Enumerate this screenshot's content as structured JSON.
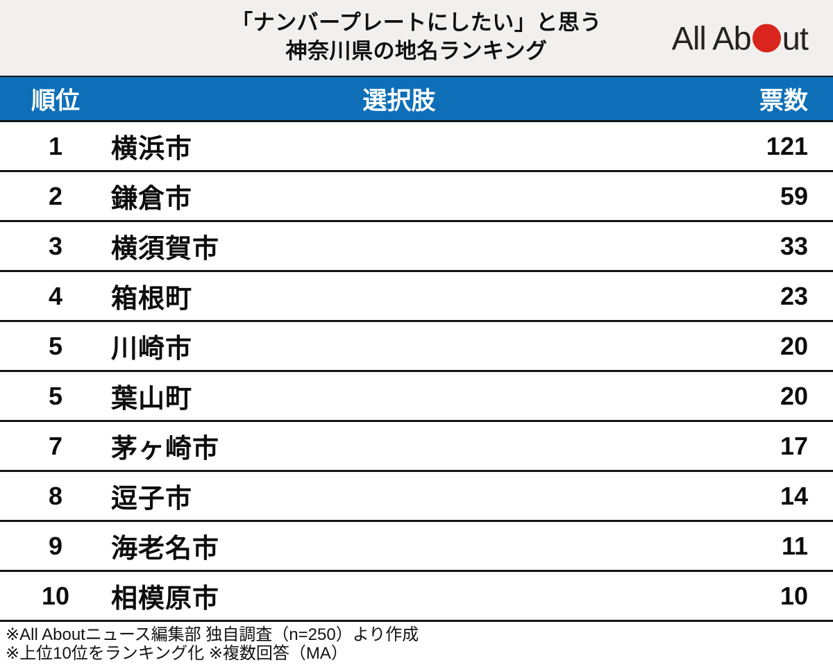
{
  "header": {
    "title_line1": "「ナンバープレートにしたい」と思う",
    "title_line2": "神奈川県の地名ランキング",
    "logo": {
      "text_left": "All Ab",
      "text_right": "ut",
      "circle_color": "#d9251d"
    }
  },
  "table": {
    "columns": {
      "rank": "順位",
      "choice": "選択肢",
      "votes": "票数"
    },
    "rows": [
      {
        "rank": "1",
        "choice": "横浜市",
        "votes": "121"
      },
      {
        "rank": "2",
        "choice": "鎌倉市",
        "votes": "59"
      },
      {
        "rank": "3",
        "choice": "横須賀市",
        "votes": "33"
      },
      {
        "rank": "4",
        "choice": "箱根町",
        "votes": "23"
      },
      {
        "rank": "5",
        "choice": "川崎市",
        "votes": "20"
      },
      {
        "rank": "5",
        "choice": "葉山町",
        "votes": "20"
      },
      {
        "rank": "7",
        "choice": "茅ヶ崎市",
        "votes": "17"
      },
      {
        "rank": "8",
        "choice": "逗子市",
        "votes": "14"
      },
      {
        "rank": "9",
        "choice": "海老名市",
        "votes": "11"
      },
      {
        "rank": "10",
        "choice": "相模原市",
        "votes": "10"
      }
    ]
  },
  "footer": {
    "note1": "※All Aboutニュース編集部 独自調査（n=250）より作成",
    "note2": "※上位10位をランキング化 ※複数回答（MA）"
  },
  "colors": {
    "accent_blue": "#0e6fb8",
    "logo_red": "#d9251d",
    "top_header_bg": "#f1f0ee",
    "divider_black": "#141414"
  },
  "chart_data": {
    "type": "table",
    "title": "「ナンバープレートにしたい」と思う神奈川県の地名ランキング",
    "columns": [
      "順位",
      "選択肢",
      "票数"
    ],
    "ranks": [
      1,
      2,
      3,
      4,
      5,
      5,
      7,
      8,
      9,
      10
    ],
    "categories": [
      "横浜市",
      "鎌倉市",
      "横須賀市",
      "箱根町",
      "川崎市",
      "葉山町",
      "茅ヶ崎市",
      "逗子市",
      "海老名市",
      "相模原市"
    ],
    "values": [
      121,
      59,
      33,
      23,
      20,
      20,
      17,
      14,
      11,
      10
    ],
    "notes": [
      "※All Aboutニュース編集部 独自調査（n=250）より作成",
      "※上位10位をランキング化 ※複数回答（MA）"
    ]
  }
}
